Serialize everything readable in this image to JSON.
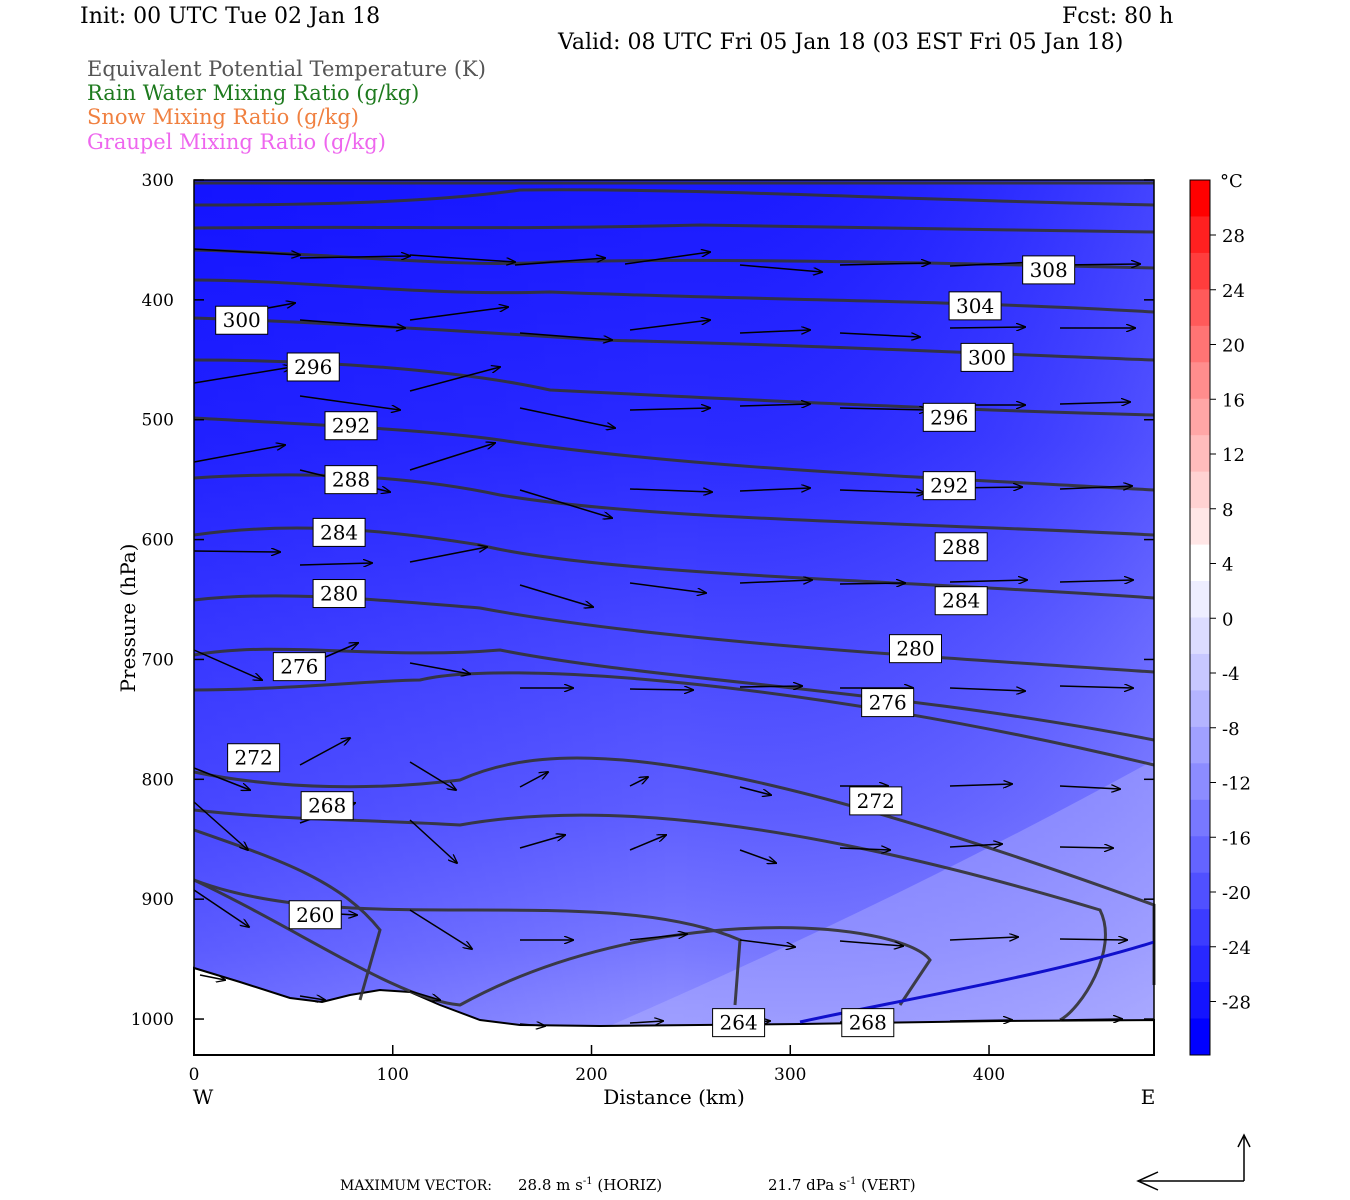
{
  "header": {
    "init": "Init: 00 UTC Tue 02 Jan 18",
    "fcst": "Fcst:   80 h",
    "valid": "Valid: 08 UTC Fri 05 Jan 18 (03 EST Fri 05 Jan 18)"
  },
  "legend": [
    {
      "label": "Equivalent Potential Temperature (K)",
      "color": "#555555"
    },
    {
      "label": "Rain Water Mixing Ratio (g/kg)",
      "color": "#1e7a1e"
    },
    {
      "label": "Snow Mixing Ratio (g/kg)",
      "color": "#f08040"
    },
    {
      "label": "Graupel Mixing Ratio (g/kg)",
      "color": "#ee66ee"
    }
  ],
  "footer": {
    "text_a": "MAXIMUM VECTOR:",
    "horiz_value": "28.8 m s",
    "horiz_unit": "(HORIZ)",
    "vert_value": "21.7 dPa s",
    "vert_unit": "(VERT)",
    "exponent": "-1"
  },
  "chart_data": {
    "type": "cross-section",
    "xlabel": "Distance (km)",
    "ylabel": "Pressure (hPa)",
    "x_ticks": [
      "0",
      "100",
      "200",
      "300",
      "400"
    ],
    "y_ticks": [
      "300",
      "400",
      "500",
      "600",
      "700",
      "800",
      "900",
      "1000"
    ],
    "x_end_labels": {
      "left": "W",
      "right": "E"
    },
    "xlim": [
      0,
      483
    ],
    "ylim": [
      1030,
      300
    ],
    "colorbar": {
      "unit": "°C",
      "labels": [
        "28",
        "24",
        "20",
        "16",
        "12",
        "8",
        "4",
        "0",
        "-4",
        "-8",
        "-12",
        "-16",
        "-20",
        "-24",
        "-28"
      ],
      "colors": [
        "#ff0000",
        "#ff2020",
        "#ff3d3d",
        "#ff5a5a",
        "#ff7474",
        "#ff8d8d",
        "#ffa6a6",
        "#ffbcbc",
        "#ffd2d2",
        "#ffe6e6",
        "#ffffff",
        "#eeeeff",
        "#dcdcff",
        "#c8c8ff",
        "#b4b4ff",
        "#a0a0ff",
        "#8c8cff",
        "#7878ff",
        "#6464ff",
        "#5050ff",
        "#3c3cff",
        "#2828ff",
        "#1414ff",
        "#0000ff"
      ]
    },
    "theta_e_labels": [
      {
        "text": "308",
        "x": 430,
        "p": 375
      },
      {
        "text": "304",
        "x": 393,
        "p": 405
      },
      {
        "text": "300",
        "x": 24,
        "p": 417
      },
      {
        "text": "300",
        "x": 399,
        "p": 448
      },
      {
        "text": "296",
        "x": 60,
        "p": 456
      },
      {
        "text": "296",
        "x": 380,
        "p": 498
      },
      {
        "text": "292",
        "x": 79,
        "p": 505
      },
      {
        "text": "292",
        "x": 380,
        "p": 555
      },
      {
        "text": "288",
        "x": 79,
        "p": 550
      },
      {
        "text": "288",
        "x": 386,
        "p": 606
      },
      {
        "text": "284",
        "x": 73,
        "p": 594
      },
      {
        "text": "284",
        "x": 386,
        "p": 651
      },
      {
        "text": "280",
        "x": 73,
        "p": 645
      },
      {
        "text": "280",
        "x": 363,
        "p": 691
      },
      {
        "text": "276",
        "x": 53,
        "p": 706
      },
      {
        "text": "276",
        "x": 349,
        "p": 736
      },
      {
        "text": "272",
        "x": 30,
        "p": 782
      },
      {
        "text": "272",
        "x": 343,
        "p": 818
      },
      {
        "text": "268",
        "x": 67,
        "p": 822
      },
      {
        "text": "268",
        "x": 339,
        "p": 1003
      },
      {
        "text": "260",
        "x": 61,
        "p": 913
      },
      {
        "text": "264",
        "x": 274,
        "p": 1003
      }
    ]
  }
}
